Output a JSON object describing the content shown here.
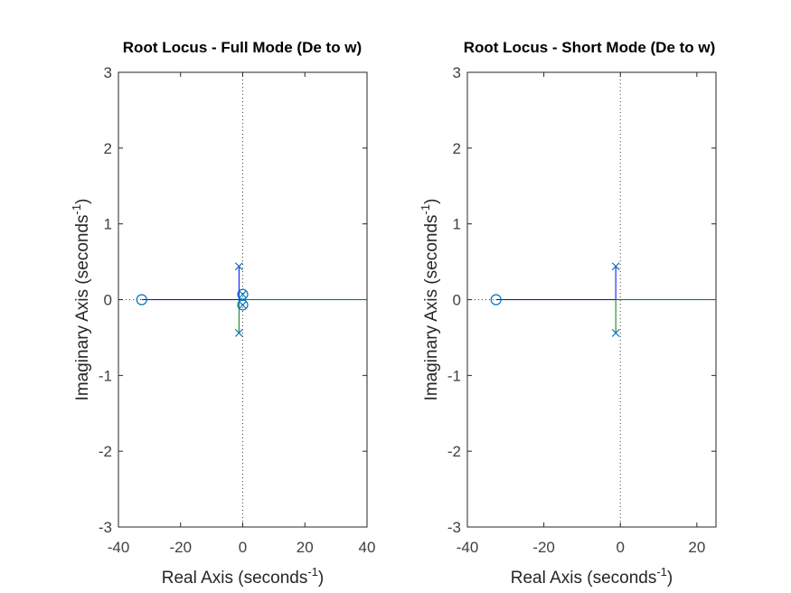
{
  "chart_data": [
    {
      "type": "scatter",
      "title": "Root Locus - Full Mode (De to w)",
      "xlabel": "Real Axis (seconds",
      "ylabel": "Imaginary Axis (seconds",
      "label_exponent": "-1",
      "label_close": ")",
      "xlim": [
        -40,
        40
      ],
      "ylim": [
        -3,
        3
      ],
      "xticks": [
        -40,
        -20,
        0,
        20,
        40
      ],
      "yticks": [
        -3,
        -2,
        -1,
        0,
        1,
        2,
        3
      ],
      "xtick_labels": [
        "-40",
        "-20",
        "0",
        "20",
        "40"
      ],
      "ytick_labels": [
        "-3",
        "-2",
        "-1",
        "0",
        "1",
        "2",
        "3"
      ],
      "poles": [
        {
          "re": -1.2,
          "im": 0.44
        },
        {
          "re": -1.2,
          "im": -0.44
        },
        {
          "re": 0.0,
          "im": 0.07
        },
        {
          "re": 0.0,
          "im": -0.07
        }
      ],
      "zeros": [
        {
          "re": -32.5,
          "im": 0.0
        },
        {
          "re": 0.0,
          "im": 0.07
        },
        {
          "re": 0.0,
          "im": -0.07
        }
      ],
      "branches": [
        {
          "color": "#0000ff",
          "points": [
            [
              -1.2,
              0.44
            ],
            [
              -1.2,
              0.0
            ],
            [
              -32.5,
              0.0
            ]
          ]
        },
        {
          "color": "#008000",
          "points": [
            [
              -1.2,
              -0.44
            ],
            [
              -1.2,
              0.0
            ],
            [
              40,
              0.0
            ]
          ]
        },
        {
          "color": "#0000ff",
          "points": [
            [
              0.0,
              0.07
            ],
            [
              0.0,
              0.07
            ]
          ]
        },
        {
          "color": "#008000",
          "points": [
            [
              0.0,
              -0.07
            ],
            [
              0.0,
              -0.07
            ]
          ]
        }
      ],
      "marker_color": "#0072bd"
    },
    {
      "type": "scatter",
      "title": "Root Locus - Short Mode (De to w)",
      "xlabel": "Real Axis (seconds",
      "ylabel": "Imaginary Axis (seconds",
      "label_exponent": "-1",
      "label_close": ")",
      "xlim": [
        -40,
        25
      ],
      "ylim": [
        -3,
        3
      ],
      "xticks": [
        -40,
        -20,
        0,
        20
      ],
      "yticks": [
        -3,
        -2,
        -1,
        0,
        1,
        2,
        3
      ],
      "xtick_labels": [
        "-40",
        "-20",
        "0",
        "20"
      ],
      "ytick_labels": [
        "-3",
        "-2",
        "-1",
        "0",
        "1",
        "2",
        "3"
      ],
      "poles": [
        {
          "re": -1.2,
          "im": 0.44
        },
        {
          "re": -1.2,
          "im": -0.44
        }
      ],
      "zeros": [
        {
          "re": -32.5,
          "im": 0.0
        }
      ],
      "branches": [
        {
          "color": "#0000ff",
          "points": [
            [
              -1.2,
              0.44
            ],
            [
              -1.2,
              0.0
            ],
            [
              -32.5,
              0.0
            ]
          ]
        },
        {
          "color": "#008000",
          "points": [
            [
              -1.2,
              -0.44
            ],
            [
              -1.2,
              0.0
            ],
            [
              25,
              0.0
            ]
          ]
        }
      ],
      "marker_color": "#0072bd"
    }
  ]
}
